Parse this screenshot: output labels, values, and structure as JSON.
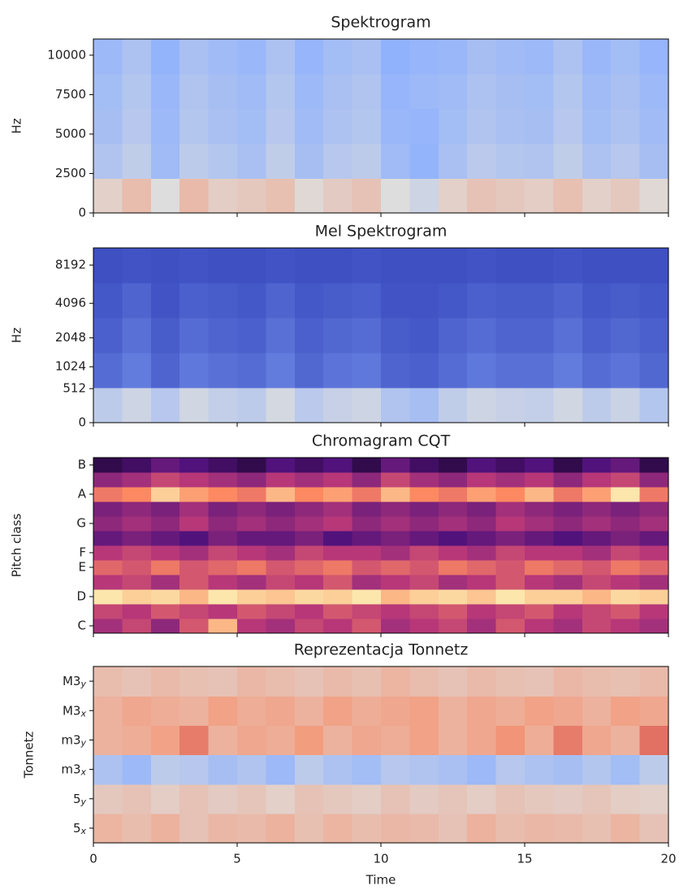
{
  "chart_data": [
    {
      "type": "heatmap",
      "title": "Spektrogram",
      "ylabel": "Hz",
      "yscale": "linear",
      "xlim": [
        0,
        20
      ],
      "ylim": [
        0,
        11025
      ],
      "yticks": [
        0,
        2500,
        5000,
        7500,
        10000
      ],
      "colormap": [
        "#3b4cc0",
        "#8db0fe",
        "#dddddd",
        "#f49a7b",
        "#b40426"
      ],
      "values": [
        [
          0.55,
          0.62,
          0.5,
          0.63,
          0.56,
          0.58,
          0.61,
          0.52,
          0.57,
          0.6,
          0.5,
          0.45,
          0.55,
          0.6,
          0.58,
          0.56,
          0.61,
          0.55,
          0.58,
          0.52
        ],
        [
          0.36,
          0.41,
          0.31,
          0.4,
          0.37,
          0.34,
          0.41,
          0.33,
          0.38,
          0.4,
          0.31,
          0.27,
          0.34,
          0.39,
          0.37,
          0.36,
          0.41,
          0.35,
          0.38,
          0.33
        ],
        [
          0.33,
          0.38,
          0.3,
          0.37,
          0.34,
          0.32,
          0.38,
          0.31,
          0.35,
          0.37,
          0.29,
          0.28,
          0.32,
          0.36,
          0.34,
          0.33,
          0.38,
          0.32,
          0.35,
          0.31
        ],
        [
          0.32,
          0.37,
          0.29,
          0.36,
          0.33,
          0.31,
          0.37,
          0.3,
          0.34,
          0.36,
          0.28,
          0.3,
          0.31,
          0.35,
          0.33,
          0.32,
          0.37,
          0.31,
          0.34,
          0.3
        ],
        [
          0.3,
          0.35,
          0.27,
          0.34,
          0.31,
          0.29,
          0.35,
          0.28,
          0.32,
          0.34,
          0.26,
          0.28,
          0.29,
          0.33,
          0.31,
          0.3,
          0.35,
          0.29,
          0.32,
          0.28
        ]
      ]
    },
    {
      "type": "heatmap",
      "title": "Mel Spektrogram",
      "ylabel": "Hz",
      "yscale": "mel",
      "xlim": [
        0,
        20
      ],
      "ylim": [
        0,
        11025
      ],
      "yticks": [
        0,
        512,
        1024,
        2048,
        4096,
        8192
      ],
      "colormap": [
        "#3b4cc0",
        "#8db0fe",
        "#dddddd",
        "#f49a7b",
        "#b40426"
      ],
      "values": [
        [
          0.4,
          0.45,
          0.38,
          0.46,
          0.42,
          0.4,
          0.47,
          0.39,
          0.43,
          0.45,
          0.36,
          0.33,
          0.41,
          0.45,
          0.43,
          0.42,
          0.46,
          0.4,
          0.44,
          0.37
        ],
        [
          0.08,
          0.12,
          0.06,
          0.11,
          0.09,
          0.08,
          0.12,
          0.07,
          0.1,
          0.11,
          0.06,
          0.05,
          0.08,
          0.11,
          0.09,
          0.09,
          0.12,
          0.08,
          0.1,
          0.07
        ],
        [
          0.05,
          0.09,
          0.04,
          0.08,
          0.06,
          0.05,
          0.09,
          0.05,
          0.07,
          0.08,
          0.04,
          0.03,
          0.06,
          0.08,
          0.06,
          0.06,
          0.09,
          0.05,
          0.07,
          0.05
        ],
        [
          0.03,
          0.06,
          0.02,
          0.05,
          0.04,
          0.03,
          0.06,
          0.03,
          0.04,
          0.05,
          0.02,
          0.02,
          0.03,
          0.05,
          0.04,
          0.04,
          0.06,
          0.03,
          0.04,
          0.03
        ],
        [
          0.01,
          0.02,
          0.01,
          0.02,
          0.01,
          0.01,
          0.02,
          0.01,
          0.01,
          0.02,
          0.01,
          0.01,
          0.01,
          0.02,
          0.01,
          0.01,
          0.02,
          0.01,
          0.01,
          0.01
        ]
      ]
    },
    {
      "type": "heatmap",
      "title": "Chromagram CQT",
      "ylabel": "Pitch class",
      "yscale": "linear",
      "xlim": [
        0,
        20
      ],
      "ylim": [
        -0.5,
        11.5
      ],
      "yticks": [
        {
          "value": 0,
          "label": "C"
        },
        {
          "value": 2,
          "label": "D"
        },
        {
          "value": 4,
          "label": "E"
        },
        {
          "value": 5,
          "label": "F"
        },
        {
          "value": 7,
          "label": "G"
        },
        {
          "value": 9,
          "label": "A"
        },
        {
          "value": 11,
          "label": "B"
        }
      ],
      "colormap": [
        "#000004",
        "#51127c",
        "#b73779",
        "#fc8961",
        "#fcfdbf"
      ],
      "values": [
        [
          0.45,
          0.55,
          0.4,
          0.6,
          0.85,
          0.5,
          0.45,
          0.55,
          0.5,
          0.6,
          0.45,
          0.5,
          0.55,
          0.45,
          0.6,
          0.5,
          0.45,
          0.55,
          0.5,
          0.45
        ],
        [
          0.55,
          0.5,
          0.6,
          0.55,
          0.5,
          0.6,
          0.55,
          0.5,
          0.6,
          0.55,
          0.5,
          0.55,
          0.6,
          0.5,
          0.55,
          0.6,
          0.5,
          0.55,
          0.6,
          0.5
        ],
        [
          0.95,
          0.9,
          0.92,
          0.85,
          0.95,
          0.9,
          0.88,
          0.92,
          0.9,
          0.95,
          0.85,
          0.9,
          0.92,
          0.88,
          0.95,
          0.9,
          0.9,
          0.85,
          0.92,
          0.9
        ],
        [
          0.5,
          0.55,
          0.45,
          0.6,
          0.5,
          0.45,
          0.55,
          0.5,
          0.6,
          0.45,
          0.5,
          0.55,
          0.45,
          0.5,
          0.6,
          0.5,
          0.45,
          0.55,
          0.5,
          0.45
        ],
        [
          0.65,
          0.6,
          0.7,
          0.6,
          0.65,
          0.7,
          0.6,
          0.65,
          0.7,
          0.6,
          0.65,
          0.6,
          0.7,
          0.65,
          0.6,
          0.7,
          0.65,
          0.6,
          0.7,
          0.65
        ],
        [
          0.5,
          0.55,
          0.5,
          0.45,
          0.55,
          0.5,
          0.45,
          0.55,
          0.5,
          0.5,
          0.45,
          0.55,
          0.5,
          0.45,
          0.55,
          0.5,
          0.5,
          0.45,
          0.55,
          0.5
        ],
        [
          0.3,
          0.35,
          0.3,
          0.25,
          0.35,
          0.3,
          0.3,
          0.35,
          0.25,
          0.3,
          0.35,
          0.3,
          0.25,
          0.3,
          0.35,
          0.3,
          0.25,
          0.3,
          0.35,
          0.3
        ],
        [
          0.4,
          0.45,
          0.4,
          0.5,
          0.4,
          0.45,
          0.4,
          0.45,
          0.5,
          0.4,
          0.45,
          0.4,
          0.45,
          0.4,
          0.5,
          0.45,
          0.4,
          0.45,
          0.4,
          0.45
        ],
        [
          0.35,
          0.4,
          0.35,
          0.45,
          0.35,
          0.4,
          0.35,
          0.4,
          0.45,
          0.35,
          0.4,
          0.35,
          0.4,
          0.35,
          0.45,
          0.4,
          0.35,
          0.4,
          0.35,
          0.4
        ],
        [
          0.7,
          0.75,
          0.9,
          0.8,
          0.75,
          0.7,
          0.85,
          0.75,
          0.8,
          0.7,
          0.85,
          0.75,
          0.7,
          0.8,
          0.75,
          0.85,
          0.7,
          0.8,
          0.95,
          0.7
        ],
        [
          0.4,
          0.45,
          0.55,
          0.5,
          0.45,
          0.4,
          0.5,
          0.45,
          0.5,
          0.4,
          0.55,
          0.45,
          0.4,
          0.5,
          0.45,
          0.5,
          0.4,
          0.5,
          0.55,
          0.4
        ],
        [
          0.15,
          0.2,
          0.3,
          0.25,
          0.2,
          0.15,
          0.25,
          0.2,
          0.25,
          0.15,
          0.3,
          0.2,
          0.15,
          0.25,
          0.2,
          0.25,
          0.15,
          0.25,
          0.3,
          0.15
        ]
      ]
    },
    {
      "type": "heatmap",
      "title": "Reprezentacja Tonnetz",
      "ylabel": "Tonnetz",
      "yscale": "linear",
      "xlabel": "Time",
      "xlim": [
        0,
        20
      ],
      "xticks": [
        0,
        5,
        10,
        15,
        20
      ],
      "ylim": [
        -0.5,
        5.5
      ],
      "yticks": [
        {
          "value": 0,
          "label": "5x"
        },
        {
          "value": 1,
          "label": "5y"
        },
        {
          "value": 2,
          "label": "m3x"
        },
        {
          "value": 3,
          "label": "m3y"
        },
        {
          "value": 4,
          "label": "M3x"
        },
        {
          "value": 5,
          "label": "M3y"
        }
      ],
      "colormap": [
        "#3b4cc0",
        "#8db0fe",
        "#dddddd",
        "#f49a7b",
        "#b40426"
      ],
      "values": [
        [
          0.65,
          0.62,
          0.66,
          0.6,
          0.64,
          0.63,
          0.66,
          0.61,
          0.65,
          0.62,
          0.64,
          0.63,
          0.6,
          0.66,
          0.62,
          0.64,
          0.63,
          0.61,
          0.65,
          0.6
        ],
        [
          0.58,
          0.6,
          0.56,
          0.6,
          0.57,
          0.59,
          0.55,
          0.6,
          0.58,
          0.56,
          0.6,
          0.57,
          0.59,
          0.56,
          0.6,
          0.58,
          0.57,
          0.59,
          0.56,
          0.55
        ],
        [
          0.35,
          0.3,
          0.4,
          0.38,
          0.33,
          0.36,
          0.3,
          0.4,
          0.35,
          0.32,
          0.38,
          0.36,
          0.34,
          0.3,
          0.38,
          0.35,
          0.33,
          0.37,
          0.32,
          0.4
        ],
        [
          0.66,
          0.68,
          0.72,
          0.8,
          0.66,
          0.7,
          0.68,
          0.74,
          0.66,
          0.7,
          0.68,
          0.72,
          0.66,
          0.7,
          0.76,
          0.68,
          0.8,
          0.7,
          0.66,
          0.82
        ],
        [
          0.66,
          0.7,
          0.68,
          0.66,
          0.72,
          0.68,
          0.7,
          0.66,
          0.72,
          0.68,
          0.7,
          0.72,
          0.66,
          0.7,
          0.68,
          0.72,
          0.7,
          0.66,
          0.72,
          0.7
        ],
        [
          0.62,
          0.6,
          0.63,
          0.61,
          0.6,
          0.64,
          0.62,
          0.6,
          0.63,
          0.61,
          0.65,
          0.62,
          0.6,
          0.63,
          0.61,
          0.6,
          0.64,
          0.62,
          0.61,
          0.63
        ]
      ]
    }
  ]
}
